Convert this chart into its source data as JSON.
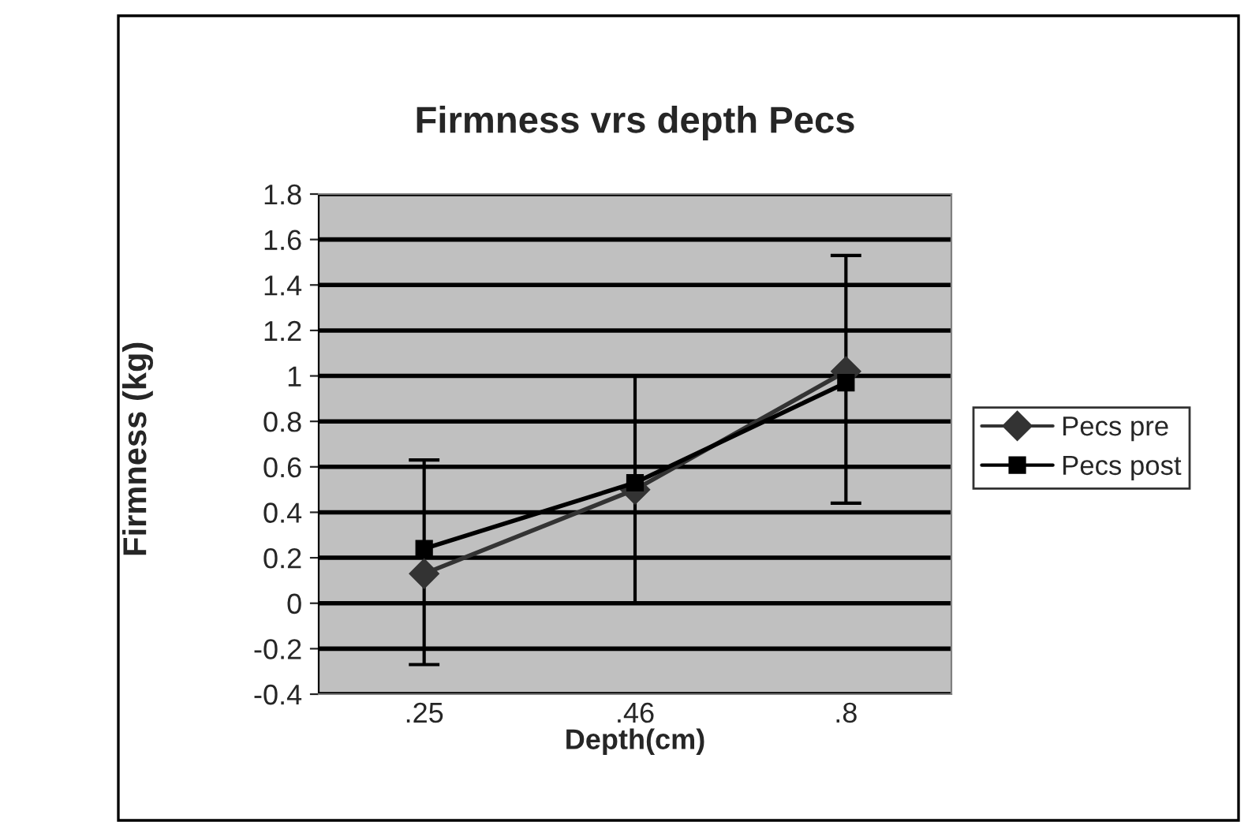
{
  "chart_data": {
    "type": "line",
    "title": "Firmness vrs depth Pecs",
    "xlabel": "Depth(cm)",
    "ylabel": "Firmness (kg)",
    "categories": [
      ".25",
      ".46",
      ".8"
    ],
    "series": [
      {
        "name": "Pecs pre",
        "color": "#333333",
        "marker": "diamond",
        "values": [
          0.13,
          0.5,
          1.02
        ],
        "errors": [
          [
            -0.27,
            0.63
          ],
          [
            0.0,
            1.0
          ],
          [
            0.44,
            1.53
          ]
        ]
      },
      {
        "name": "Pecs post",
        "color": "#000000",
        "marker": "square",
        "values": [
          0.24,
          0.53,
          0.97
        ]
      }
    ],
    "ylim": [
      -0.4,
      1.8
    ],
    "yticks": [
      -0.4,
      -0.2,
      0,
      0.2,
      0.4,
      0.6,
      0.8,
      1,
      1.2,
      1.4,
      1.6,
      1.8
    ],
    "grid": "y",
    "legend": "right",
    "line_style": "solid"
  }
}
